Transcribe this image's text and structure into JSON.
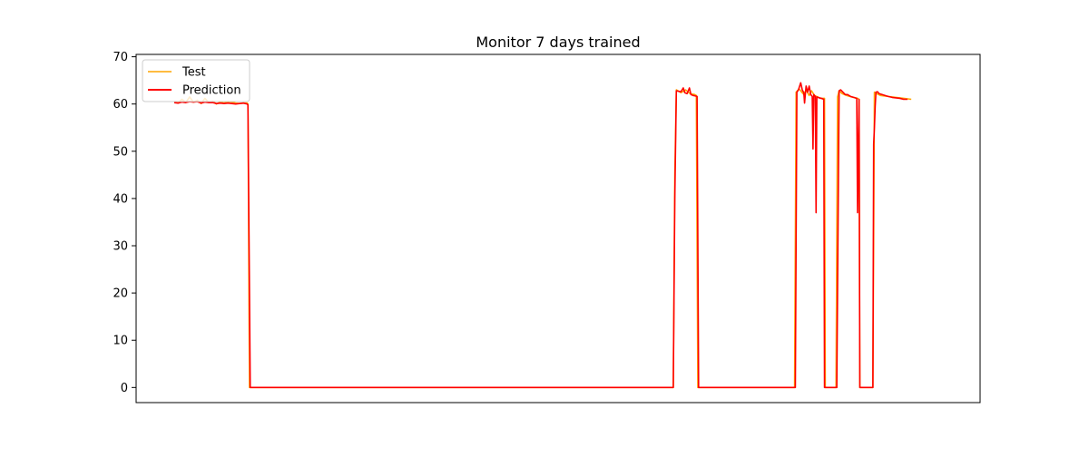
{
  "chart_data": {
    "type": "line",
    "title": "Monitor 7 days trained",
    "xlabel": "",
    "ylabel": "",
    "x_ticks_visible": false,
    "ylim": [
      -3.2,
      70.5
    ],
    "xlim": [
      0,
      1000
    ],
    "y_ticks": [
      0,
      10,
      20,
      30,
      40,
      50,
      60,
      70
    ],
    "grid": false,
    "legend_placement": "upper-left",
    "series": [
      {
        "name": "Test",
        "color": "#ffa500",
        "points": [
          [
            0,
            60.5
          ],
          [
            5,
            60.2
          ],
          [
            10,
            61.0
          ],
          [
            15,
            60.3
          ],
          [
            20,
            61.5
          ],
          [
            25,
            60.4
          ],
          [
            30,
            60.8
          ],
          [
            35,
            60.1
          ],
          [
            40,
            61.2
          ],
          [
            45,
            60.3
          ],
          [
            50,
            60.6
          ],
          [
            55,
            60.0
          ],
          [
            60,
            60.4
          ],
          [
            65,
            60.2
          ],
          [
            70,
            60.5
          ],
          [
            75,
            60.4
          ],
          [
            80,
            60.2
          ],
          [
            85,
            60.1
          ],
          [
            90,
            60.2
          ],
          [
            95,
            60.2
          ],
          [
            96,
            60.0
          ],
          [
            98,
            0
          ],
          [
            650,
            0
          ],
          [
            652,
            45
          ],
          [
            654,
            63
          ],
          [
            660,
            62.4
          ],
          [
            666,
            63.0
          ],
          [
            672,
            62.2
          ],
          [
            678,
            62.0
          ],
          [
            680,
            61.8
          ],
          [
            682,
            0
          ],
          [
            808,
            0
          ],
          [
            810,
            62.5
          ],
          [
            814,
            63.2
          ],
          [
            818,
            62.4
          ],
          [
            820,
            62.0
          ],
          [
            823,
            63.0
          ],
          [
            827,
            61.8
          ],
          [
            830,
            62.8
          ],
          [
            834,
            61.8
          ],
          [
            838,
            61.5
          ],
          [
            842,
            61.2
          ],
          [
            847,
            61.2
          ],
          [
            848,
            0
          ],
          [
            862,
            0
          ],
          [
            864,
            61.5
          ],
          [
            866,
            62.8
          ],
          [
            870,
            62.2
          ],
          [
            876,
            61.8
          ],
          [
            882,
            61.5
          ],
          [
            890,
            61.2
          ],
          [
            892,
            61.0
          ],
          [
            893,
            0
          ],
          [
            910,
            0
          ],
          [
            912,
            62.5
          ],
          [
            915,
            62.2
          ],
          [
            920,
            61.8
          ],
          [
            930,
            61.6
          ],
          [
            940,
            61.4
          ],
          [
            950,
            61.2
          ],
          [
            960,
            61.0
          ]
        ]
      },
      {
        "name": "Prediction",
        "color": "#ff0000",
        "points": [
          [
            0,
            60.3
          ],
          [
            5,
            60.2
          ],
          [
            10,
            60.4
          ],
          [
            15,
            60.3
          ],
          [
            20,
            60.5
          ],
          [
            25,
            60.4
          ],
          [
            30,
            60.5
          ],
          [
            35,
            60.2
          ],
          [
            40,
            60.4
          ],
          [
            45,
            60.3
          ],
          [
            50,
            60.3
          ],
          [
            55,
            60.1
          ],
          [
            60,
            60.2
          ],
          [
            65,
            60.1
          ],
          [
            70,
            60.2
          ],
          [
            75,
            60.1
          ],
          [
            80,
            60.0
          ],
          [
            85,
            60.1
          ],
          [
            90,
            60.2
          ],
          [
            95,
            60.0
          ],
          [
            96,
            59.8
          ],
          [
            99,
            0
          ],
          [
            650,
            0
          ],
          [
            652,
            40
          ],
          [
            654,
            62.8
          ],
          [
            660,
            62.6
          ],
          [
            663,
            63.4
          ],
          [
            665,
            62.4
          ],
          [
            668,
            62.2
          ],
          [
            671,
            63.4
          ],
          [
            673,
            62.0
          ],
          [
            676,
            61.8
          ],
          [
            679,
            61.7
          ],
          [
            681,
            61.6
          ],
          [
            683,
            0
          ],
          [
            809,
            0
          ],
          [
            811,
            62.5
          ],
          [
            813,
            63.0
          ],
          [
            816,
            64.5
          ],
          [
            818,
            63.0
          ],
          [
            820,
            62.4
          ],
          [
            821,
            60.2
          ],
          [
            823,
            63.8
          ],
          [
            825,
            62.5
          ],
          [
            827,
            63.8
          ],
          [
            829,
            62.0
          ],
          [
            831,
            61.6
          ],
          [
            832,
            50.5
          ],
          [
            833,
            62.0
          ],
          [
            835,
            61.6
          ],
          [
            836,
            37.0
          ],
          [
            837,
            61.5
          ],
          [
            840,
            61.3
          ],
          [
            843,
            61.2
          ],
          [
            846,
            61.0
          ],
          [
            847,
            0
          ],
          [
            863,
            0
          ],
          [
            865,
            42
          ],
          [
            866,
            62.8
          ],
          [
            868,
            63.0
          ],
          [
            871,
            62.5
          ],
          [
            874,
            62.0
          ],
          [
            877,
            62.0
          ],
          [
            881,
            61.6
          ],
          [
            885,
            61.4
          ],
          [
            889,
            61.2
          ],
          [
            890,
            37.0
          ],
          [
            891,
            50.5
          ],
          [
            892,
            61.0
          ],
          [
            893,
            0
          ],
          [
            910,
            0
          ],
          [
            911,
            51.5
          ],
          [
            912,
            55.0
          ],
          [
            913,
            59.5
          ],
          [
            914,
            62.5
          ],
          [
            916,
            62.6
          ],
          [
            918,
            62.2
          ],
          [
            922,
            62.0
          ],
          [
            926,
            61.8
          ],
          [
            930,
            61.6
          ],
          [
            935,
            61.4
          ],
          [
            940,
            61.3
          ],
          [
            945,
            61.2
          ],
          [
            950,
            61.0
          ],
          [
            955,
            61.0
          ]
        ]
      }
    ]
  }
}
